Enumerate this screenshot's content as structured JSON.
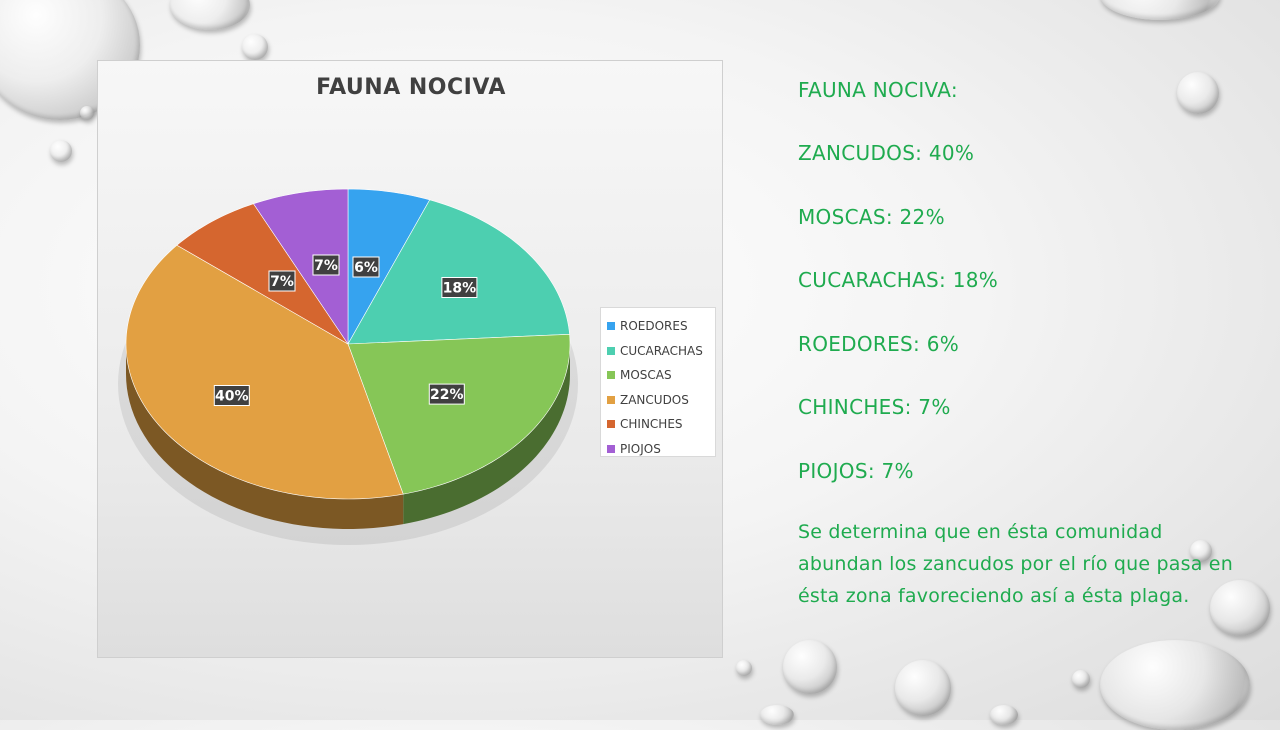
{
  "chart_data": {
    "type": "pie",
    "title": "FAUNA NOCIVA",
    "categories": [
      "ROEDORES",
      "CUCARACHAS",
      "MOSCAS",
      "ZANCUDOS",
      "CHINCHES",
      "PIOJOS"
    ],
    "values": [
      6,
      18,
      22,
      40,
      7,
      7
    ],
    "data_labels": [
      "6%",
      "18%",
      "22%",
      "40%",
      "7%",
      "7%"
    ],
    "colors": [
      "#36a3ef",
      "#4dcfb0",
      "#86c657",
      "#e2a042",
      "#d5662f",
      "#a35fd4"
    ],
    "legend_position": "right",
    "style": "3d"
  },
  "summary": {
    "heading": "FAUNA NOCIVA:",
    "lines": [
      "ZANCUDOS: 40%",
      "MOSCAS: 22%",
      "CUCARACHAS: 18%",
      "ROEDORES: 6%",
      "CHINCHES: 7%",
      "PIOJOS: 7%"
    ],
    "note": "Se determina que en ésta comunidad abundan los zancudos por el río que pasa en ésta zona favoreciendo así a ésta plaga."
  },
  "accent_color": "#1fab4f"
}
